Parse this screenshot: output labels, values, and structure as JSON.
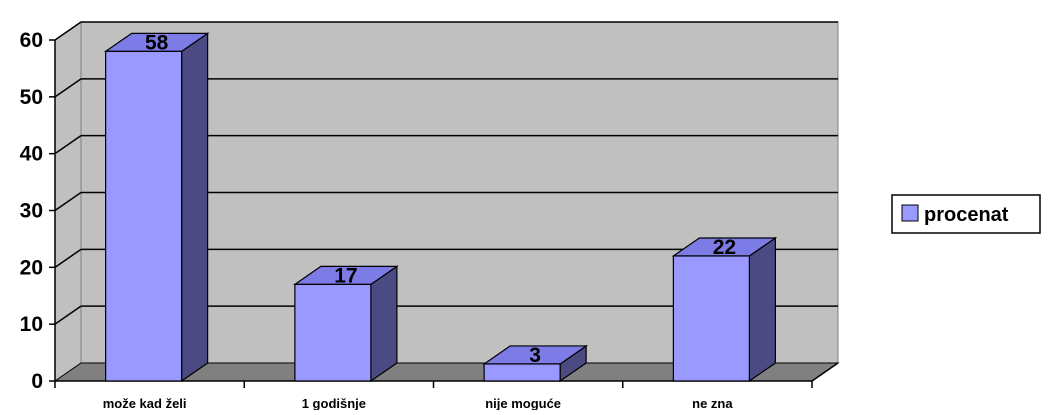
{
  "chart_data": {
    "type": "bar",
    "categories": [
      "može kad želi",
      "1 godišnje",
      "nije moguće",
      "ne zna"
    ],
    "series": [
      {
        "name": "procenat",
        "values": [
          58,
          17,
          3,
          22
        ]
      }
    ],
    "ylim": [
      0,
      60
    ],
    "yticks": [
      0,
      10,
      20,
      30,
      40,
      50,
      60
    ],
    "grid": true,
    "legend": "right",
    "colors": {
      "bar_front": "#9999ff",
      "bar_side": "#4b4a82",
      "bar_top": "#7d7ce6",
      "wall": "#c0c0c0",
      "floor": "#808080",
      "gridline": "#000000"
    }
  }
}
